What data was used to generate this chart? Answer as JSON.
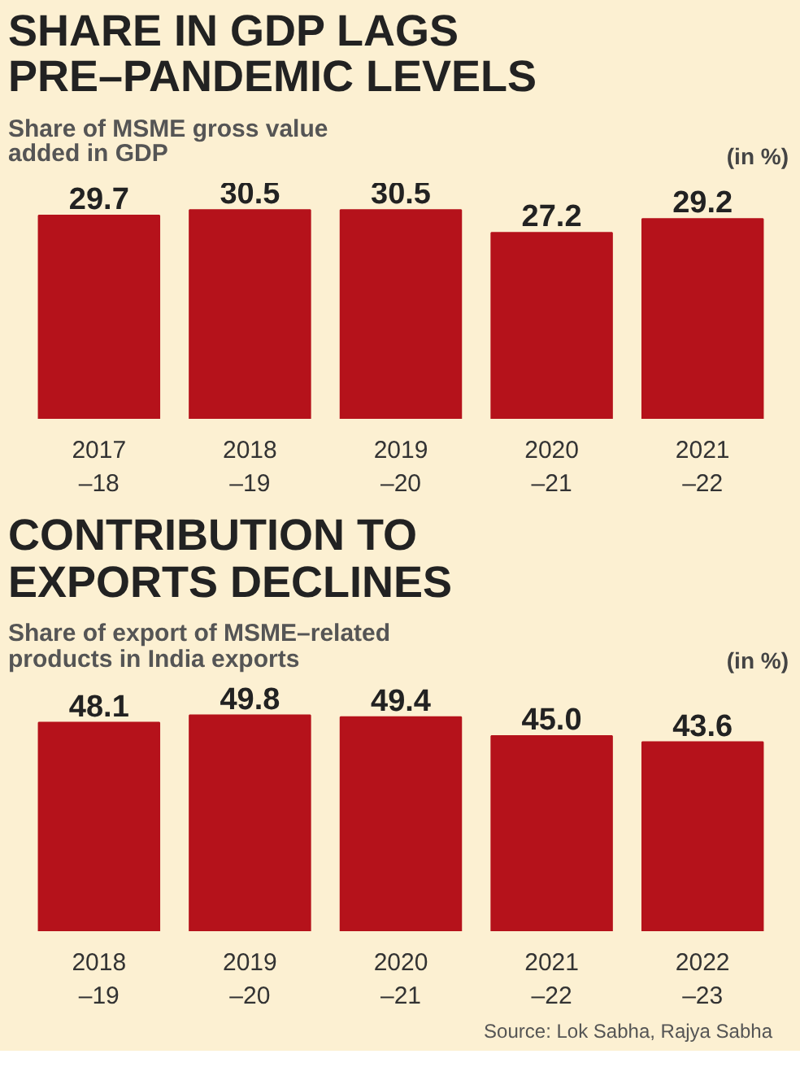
{
  "chart_data": [
    {
      "type": "bar",
      "title": "SHARE IN GDP LAGS\nPRE–PANDEMIC LEVELS",
      "subtitle": "Share of MSME gross value\nadded in GDP",
      "categories": [
        "2017\n–18",
        "2018\n–19",
        "2019\n–20",
        "2020\n–21",
        "2021\n–22"
      ],
      "series": [
        {
          "color": "#b5121b",
          "values": [
            29.7,
            30.5,
            30.5,
            27.2,
            29.2
          ],
          "value_labels": [
            "29.7",
            "30.5",
            "30.5",
            "27.2",
            "29.2"
          ]
        }
      ],
      "tick_labels": "x",
      "annotations": [
        "(in %)"
      ]
    },
    {
      "type": "bar",
      "title": "CONTRIBUTION TO\nEXPORTS DECLINES",
      "subtitle": "Share of export of MSME–related\nproducts in India exports",
      "categories": [
        "2018\n–19",
        "2019\n–20",
        "2020\n–21",
        "2021\n–22",
        "2022\n–23"
      ],
      "series": [
        {
          "color": "#b5121b",
          "values": [
            48.1,
            49.8,
            49.4,
            45.0,
            43.6
          ],
          "value_labels": [
            "48.1",
            "49.8",
            "49.4",
            "45.0",
            "43.6"
          ]
        }
      ],
      "tick_labels": "x",
      "annotations": [
        "(in %)",
        "Source: Lok Sabha, Rajya Sabha"
      ]
    }
  ]
}
